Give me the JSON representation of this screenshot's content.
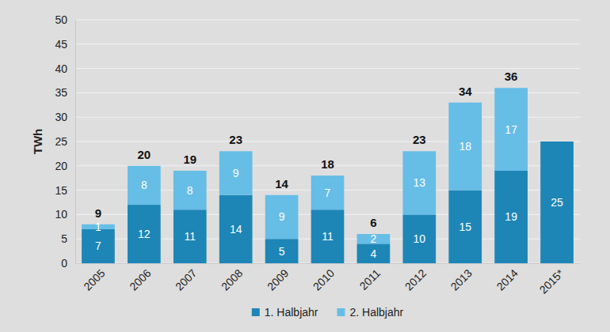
{
  "chart_data": {
    "type": "bar",
    "stacked": true,
    "data_labels": true,
    "grid": true,
    "legend": "bottom",
    "y_label": "TWh",
    "categories": [
      "2005",
      "2006",
      "2007",
      "2008",
      "2009",
      "2010",
      "2011",
      "2012",
      "2013",
      "2014",
      "2015*"
    ],
    "series": [
      {
        "name": "1. Halbjahr",
        "color": "#1d86b7",
        "values": [
          7,
          12,
          11,
          14,
          5,
          11,
          4,
          10,
          15,
          19,
          25
        ]
      },
      {
        "name": "2. Halbjahr",
        "color": "#66bde6",
        "values": [
          1,
          8,
          8,
          9,
          9,
          7,
          2,
          13,
          18,
          17,
          null
        ]
      }
    ],
    "totals": [
      9,
      20,
      19,
      23,
      14,
      18,
      6,
      23,
      34,
      36,
      null
    ],
    "ylim": [
      0,
      50
    ],
    "yticks": [
      0,
      5,
      10,
      15,
      20,
      25,
      30,
      35,
      40,
      45,
      50
    ]
  }
}
